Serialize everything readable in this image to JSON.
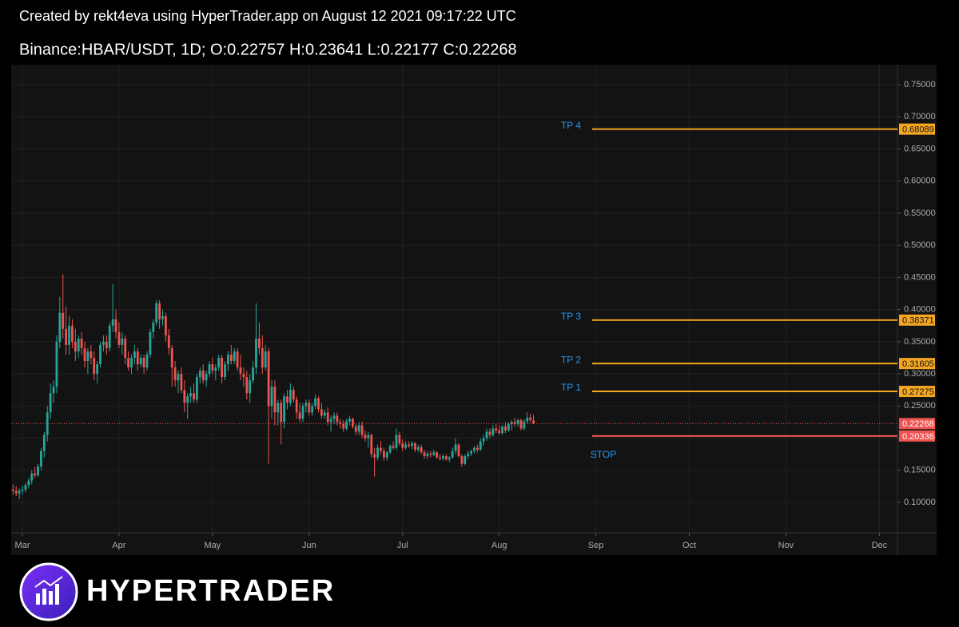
{
  "header": {
    "credit": "Created by rekt4eva using HyperTrader.app on August 12 2021 09:17:22 UTC",
    "symbol_line": "Binance:HBAR/USDT, 1D;  O:0.22757 H:0.23641 L:0.22177 C:0.22268"
  },
  "logo_text": "HYPERTRADER",
  "chart_data": {
    "type": "candlestick",
    "up_color": "#26a69a",
    "down_color": "#ef5350",
    "grid": true,
    "xlim": [
      -0.6,
      283.8
    ],
    "xticks": [
      {
        "value": 3,
        "label": "Mar"
      },
      {
        "value": 34,
        "label": "Apr"
      },
      {
        "value": 64,
        "label": "May"
      },
      {
        "value": 95,
        "label": "Jun"
      },
      {
        "value": 125,
        "label": "Jul"
      },
      {
        "value": 156,
        "label": "Aug"
      },
      {
        "value": 187,
        "label": "Sep"
      },
      {
        "value": 217,
        "label": "Oct"
      },
      {
        "value": 248,
        "label": "Nov"
      },
      {
        "value": 278,
        "label": "Dec"
      }
    ],
    "ylim": [
      0.0528,
      0.7811
    ],
    "yticks": [
      {
        "value": 0.1,
        "label": "0.10000"
      },
      {
        "value": 0.15,
        "label": "0.15000"
      },
      {
        "value": 0.2,
        "label": "0.20000"
      },
      {
        "value": 0.25,
        "label": "0.25000"
      },
      {
        "value": 0.3,
        "label": "0.30000"
      },
      {
        "value": 0.35,
        "label": "0.35000"
      },
      {
        "value": 0.4,
        "label": "0.40000"
      },
      {
        "value": 0.45,
        "label": "0.45000"
      },
      {
        "value": 0.5,
        "label": "0.50000"
      },
      {
        "value": 0.55,
        "label": "0.55000"
      },
      {
        "value": 0.6,
        "label": "0.60000"
      },
      {
        "value": 0.65,
        "label": "0.65000"
      },
      {
        "value": 0.7,
        "label": "0.70000"
      },
      {
        "value": 0.75,
        "label": "0.75000"
      }
    ],
    "last_price": {
      "value": 0.22268,
      "color": "#ef5350"
    },
    "levels": [
      {
        "label": "TP 4",
        "value": 0.68089,
        "color": "#f5a623"
      },
      {
        "label": "TP 3",
        "value": 0.38371,
        "color": "#f5a623"
      },
      {
        "label": "TP 2",
        "value": 0.31605,
        "color": "#f5a623"
      },
      {
        "label": "TP 1",
        "value": 0.27275,
        "color": "#f5a623"
      },
      {
        "label": "STOP",
        "value": 0.20336,
        "color": "#ef5350"
      }
    ],
    "candles": [
      [
        0.12,
        0.128,
        0.112,
        0.118
      ],
      [
        0.118,
        0.125,
        0.11,
        0.114
      ],
      [
        0.114,
        0.122,
        0.105,
        0.118
      ],
      [
        0.118,
        0.126,
        0.112,
        0.12
      ],
      [
        0.12,
        0.13,
        0.116,
        0.127
      ],
      [
        0.127,
        0.138,
        0.122,
        0.134
      ],
      [
        0.134,
        0.15,
        0.128,
        0.145
      ],
      [
        0.145,
        0.155,
        0.138,
        0.142
      ],
      [
        0.142,
        0.16,
        0.14,
        0.156
      ],
      [
        0.156,
        0.185,
        0.15,
        0.18
      ],
      [
        0.18,
        0.21,
        0.17,
        0.205
      ],
      [
        0.205,
        0.25,
        0.195,
        0.24
      ],
      [
        0.24,
        0.285,
        0.23,
        0.27
      ],
      [
        0.27,
        0.29,
        0.255,
        0.28
      ],
      [
        0.28,
        0.36,
        0.27,
        0.35
      ],
      [
        0.35,
        0.42,
        0.34,
        0.395
      ],
      [
        0.395,
        0.455,
        0.355,
        0.37
      ],
      [
        0.37,
        0.405,
        0.33,
        0.345
      ],
      [
        0.345,
        0.39,
        0.33,
        0.375
      ],
      [
        0.375,
        0.385,
        0.34,
        0.35
      ],
      [
        0.35,
        0.37,
        0.32,
        0.335
      ],
      [
        0.335,
        0.36,
        0.325,
        0.355
      ],
      [
        0.355,
        0.365,
        0.33,
        0.34
      ],
      [
        0.34,
        0.35,
        0.31,
        0.32
      ],
      [
        0.32,
        0.34,
        0.3,
        0.335
      ],
      [
        0.335,
        0.345,
        0.315,
        0.325
      ],
      [
        0.325,
        0.335,
        0.29,
        0.3
      ],
      [
        0.3,
        0.32,
        0.285,
        0.315
      ],
      [
        0.315,
        0.35,
        0.31,
        0.345
      ],
      [
        0.345,
        0.36,
        0.335,
        0.35
      ],
      [
        0.35,
        0.36,
        0.33,
        0.34
      ],
      [
        0.34,
        0.38,
        0.335,
        0.375
      ],
      [
        0.375,
        0.44,
        0.365,
        0.385
      ],
      [
        0.385,
        0.4,
        0.355,
        0.365
      ],
      [
        0.365,
        0.38,
        0.34,
        0.345
      ],
      [
        0.345,
        0.365,
        0.33,
        0.355
      ],
      [
        0.355,
        0.36,
        0.315,
        0.325
      ],
      [
        0.325,
        0.335,
        0.305,
        0.31
      ],
      [
        0.31,
        0.33,
        0.3,
        0.325
      ],
      [
        0.325,
        0.345,
        0.315,
        0.335
      ],
      [
        0.335,
        0.34,
        0.305,
        0.315
      ],
      [
        0.315,
        0.33,
        0.31,
        0.325
      ],
      [
        0.325,
        0.33,
        0.3,
        0.31
      ],
      [
        0.31,
        0.335,
        0.305,
        0.33
      ],
      [
        0.33,
        0.37,
        0.325,
        0.365
      ],
      [
        0.365,
        0.385,
        0.355,
        0.38
      ],
      [
        0.38,
        0.415,
        0.375,
        0.41
      ],
      [
        0.41,
        0.415,
        0.37,
        0.385
      ],
      [
        0.385,
        0.4,
        0.375,
        0.39
      ],
      [
        0.39,
        0.395,
        0.35,
        0.36
      ],
      [
        0.36,
        0.37,
        0.33,
        0.34
      ],
      [
        0.34,
        0.345,
        0.28,
        0.31
      ],
      [
        0.31,
        0.32,
        0.28,
        0.29
      ],
      [
        0.29,
        0.305,
        0.27,
        0.3
      ],
      [
        0.3,
        0.31,
        0.27,
        0.275
      ],
      [
        0.275,
        0.29,
        0.24,
        0.255
      ],
      [
        0.255,
        0.27,
        0.23,
        0.265
      ],
      [
        0.265,
        0.28,
        0.255,
        0.27
      ],
      [
        0.27,
        0.285,
        0.255,
        0.26
      ],
      [
        0.26,
        0.3,
        0.255,
        0.295
      ],
      [
        0.295,
        0.31,
        0.285,
        0.305
      ],
      [
        0.305,
        0.315,
        0.285,
        0.29
      ],
      [
        0.29,
        0.305,
        0.28,
        0.3
      ],
      [
        0.3,
        0.32,
        0.295,
        0.315
      ],
      [
        0.315,
        0.325,
        0.3,
        0.305
      ],
      [
        0.305,
        0.315,
        0.29,
        0.31
      ],
      [
        0.31,
        0.33,
        0.305,
        0.325
      ],
      [
        0.325,
        0.33,
        0.285,
        0.295
      ],
      [
        0.295,
        0.32,
        0.29,
        0.315
      ],
      [
        0.315,
        0.335,
        0.305,
        0.33
      ],
      [
        0.33,
        0.345,
        0.315,
        0.32
      ],
      [
        0.32,
        0.34,
        0.315,
        0.335
      ],
      [
        0.335,
        0.34,
        0.305,
        0.31
      ],
      [
        0.31,
        0.33,
        0.29,
        0.3
      ],
      [
        0.3,
        0.31,
        0.28,
        0.295
      ],
      [
        0.295,
        0.305,
        0.26,
        0.27
      ],
      [
        0.27,
        0.3,
        0.255,
        0.29
      ],
      [
        0.29,
        0.32,
        0.285,
        0.31
      ],
      [
        0.31,
        0.41,
        0.3,
        0.355
      ],
      [
        0.355,
        0.38,
        0.33,
        0.34
      ],
      [
        0.34,
        0.36,
        0.3,
        0.31
      ],
      [
        0.31,
        0.345,
        0.305,
        0.335
      ],
      [
        0.335,
        0.34,
        0.16,
        0.25
      ],
      [
        0.25,
        0.29,
        0.23,
        0.28
      ],
      [
        0.28,
        0.29,
        0.22,
        0.24
      ],
      [
        0.24,
        0.26,
        0.22,
        0.255
      ],
      [
        0.255,
        0.26,
        0.19,
        0.225
      ],
      [
        0.225,
        0.27,
        0.215,
        0.265
      ],
      [
        0.265,
        0.275,
        0.245,
        0.255
      ],
      [
        0.255,
        0.285,
        0.25,
        0.275
      ],
      [
        0.275,
        0.28,
        0.255,
        0.26
      ],
      [
        0.26,
        0.265,
        0.23,
        0.24
      ],
      [
        0.24,
        0.255,
        0.225,
        0.23
      ],
      [
        0.23,
        0.255,
        0.225,
        0.25
      ],
      [
        0.25,
        0.26,
        0.24,
        0.255
      ],
      [
        0.255,
        0.26,
        0.235,
        0.24
      ],
      [
        0.24,
        0.255,
        0.235,
        0.25
      ],
      [
        0.25,
        0.268,
        0.245,
        0.262
      ],
      [
        0.262,
        0.265,
        0.24,
        0.245
      ],
      [
        0.245,
        0.255,
        0.23,
        0.235
      ],
      [
        0.235,
        0.245,
        0.23,
        0.24
      ],
      [
        0.24,
        0.248,
        0.22,
        0.225
      ],
      [
        0.225,
        0.235,
        0.21,
        0.23
      ],
      [
        0.23,
        0.24,
        0.222,
        0.235
      ],
      [
        0.235,
        0.24,
        0.22,
        0.225
      ],
      [
        0.225,
        0.23,
        0.215,
        0.222
      ],
      [
        0.222,
        0.228,
        0.21,
        0.215
      ],
      [
        0.215,
        0.23,
        0.212,
        0.226
      ],
      [
        0.226,
        0.235,
        0.22,
        0.23
      ],
      [
        0.23,
        0.232,
        0.215,
        0.218
      ],
      [
        0.218,
        0.222,
        0.205,
        0.21
      ],
      [
        0.21,
        0.225,
        0.205,
        0.22
      ],
      [
        0.22,
        0.226,
        0.2,
        0.205
      ],
      [
        0.205,
        0.212,
        0.195,
        0.2
      ],
      [
        0.2,
        0.21,
        0.185,
        0.205
      ],
      [
        0.205,
        0.207,
        0.17,
        0.175
      ],
      [
        0.175,
        0.185,
        0.14,
        0.17
      ],
      [
        0.17,
        0.19,
        0.165,
        0.185
      ],
      [
        0.185,
        0.195,
        0.175,
        0.18
      ],
      [
        0.18,
        0.185,
        0.165,
        0.17
      ],
      [
        0.17,
        0.18,
        0.165,
        0.178
      ],
      [
        0.178,
        0.19,
        0.175,
        0.188
      ],
      [
        0.188,
        0.195,
        0.182,
        0.185
      ],
      [
        0.185,
        0.215,
        0.182,
        0.205
      ],
      [
        0.205,
        0.21,
        0.188,
        0.192
      ],
      [
        0.192,
        0.198,
        0.18,
        0.185
      ],
      [
        0.185,
        0.195,
        0.182,
        0.19
      ],
      [
        0.19,
        0.195,
        0.185,
        0.188
      ],
      [
        0.188,
        0.195,
        0.183,
        0.192
      ],
      [
        0.192,
        0.194,
        0.178,
        0.182
      ],
      [
        0.182,
        0.19,
        0.178,
        0.186
      ],
      [
        0.186,
        0.19,
        0.175,
        0.178
      ],
      [
        0.178,
        0.182,
        0.168,
        0.172
      ],
      [
        0.172,
        0.18,
        0.168,
        0.176
      ],
      [
        0.176,
        0.18,
        0.17,
        0.174
      ],
      [
        0.174,
        0.182,
        0.172,
        0.178
      ],
      [
        0.178,
        0.18,
        0.168,
        0.17
      ],
      [
        0.17,
        0.175,
        0.165,
        0.168
      ],
      [
        0.168,
        0.175,
        0.165,
        0.172
      ],
      [
        0.172,
        0.175,
        0.165,
        0.167
      ],
      [
        0.167,
        0.172,
        0.163,
        0.17
      ],
      [
        0.17,
        0.185,
        0.168,
        0.18
      ],
      [
        0.18,
        0.2,
        0.175,
        0.19
      ],
      [
        0.19,
        0.192,
        0.17,
        0.172
      ],
      [
        0.172,
        0.175,
        0.155,
        0.16
      ],
      [
        0.16,
        0.175,
        0.158,
        0.172
      ],
      [
        0.172,
        0.18,
        0.168,
        0.176
      ],
      [
        0.176,
        0.182,
        0.172,
        0.18
      ],
      [
        0.18,
        0.188,
        0.176,
        0.185
      ],
      [
        0.185,
        0.19,
        0.178,
        0.182
      ],
      [
        0.182,
        0.2,
        0.18,
        0.195
      ],
      [
        0.195,
        0.205,
        0.188,
        0.2
      ],
      [
        0.2,
        0.215,
        0.196,
        0.21
      ],
      [
        0.21,
        0.215,
        0.2,
        0.205
      ],
      [
        0.205,
        0.22,
        0.202,
        0.215
      ],
      [
        0.215,
        0.222,
        0.208,
        0.212
      ],
      [
        0.212,
        0.22,
        0.205,
        0.208
      ],
      [
        0.208,
        0.22,
        0.205,
        0.218
      ],
      [
        0.218,
        0.225,
        0.208,
        0.212
      ],
      [
        0.212,
        0.225,
        0.21,
        0.222
      ],
      [
        0.222,
        0.228,
        0.212,
        0.225
      ],
      [
        0.225,
        0.232,
        0.218,
        0.222
      ],
      [
        0.222,
        0.23,
        0.218,
        0.228
      ],
      [
        0.228,
        0.23,
        0.212,
        0.215
      ],
      [
        0.215,
        0.23,
        0.212,
        0.226
      ],
      [
        0.226,
        0.24,
        0.222,
        0.232
      ],
      [
        0.232,
        0.238,
        0.225,
        0.228
      ],
      [
        0.22757,
        0.23641,
        0.22177,
        0.22268
      ]
    ]
  }
}
